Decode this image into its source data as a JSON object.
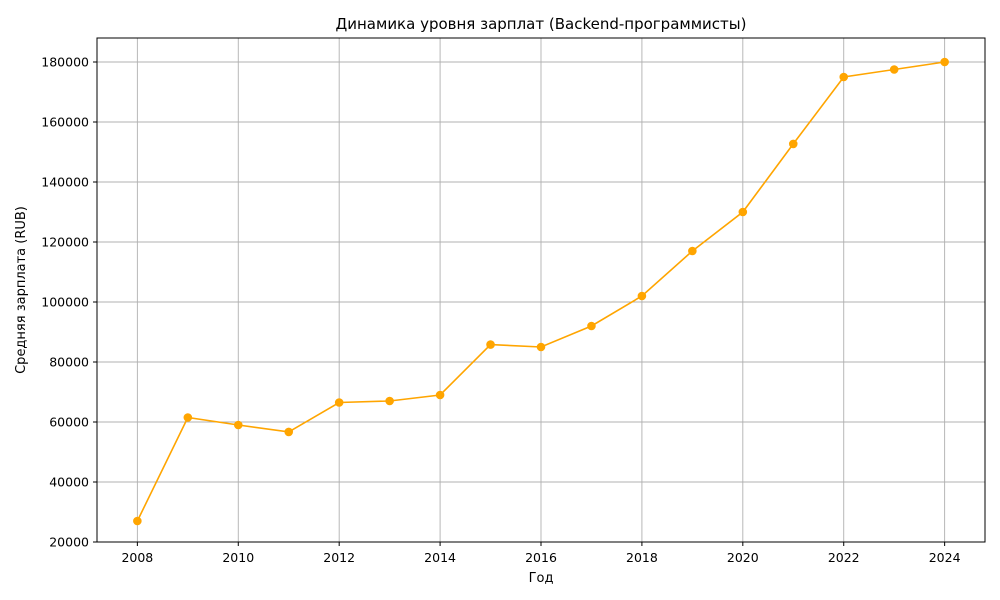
{
  "chart_data": {
    "type": "line",
    "title": "Динамика уровня зарплат (Backend-программисты)",
    "xlabel": "Год",
    "ylabel": "Средняя зарплата (RUB)",
    "x": [
      2008,
      2009,
      2010,
      2011,
      2012,
      2013,
      2014,
      2015,
      2016,
      2017,
      2018,
      2019,
      2020,
      2021,
      2022,
      2023,
      2024
    ],
    "series": [
      {
        "values": [
          27000,
          61500,
          59000,
          56700,
          66500,
          67000,
          69000,
          85800,
          85000,
          92000,
          102000,
          117000,
          130000,
          152700,
          175000,
          177500,
          180000
        ],
        "color": "#ffa500",
        "marker": "circle"
      }
    ],
    "xlim": [
      2007.2,
      2024.8
    ],
    "ylim": [
      20000,
      188000
    ],
    "xticks": [
      2008,
      2010,
      2012,
      2014,
      2016,
      2018,
      2020,
      2022,
      2024
    ],
    "yticks": [
      20000,
      40000,
      60000,
      80000,
      100000,
      120000,
      140000,
      160000,
      180000
    ],
    "xtick_labels": [
      "2008",
      "2010",
      "2012",
      "2014",
      "2016",
      "2018",
      "2020",
      "2022",
      "2024"
    ],
    "ytick_labels": [
      "20000",
      "40000",
      "60000",
      "80000",
      "100000",
      "120000",
      "140000",
      "160000",
      "180000"
    ],
    "grid": true,
    "legend": false
  }
}
